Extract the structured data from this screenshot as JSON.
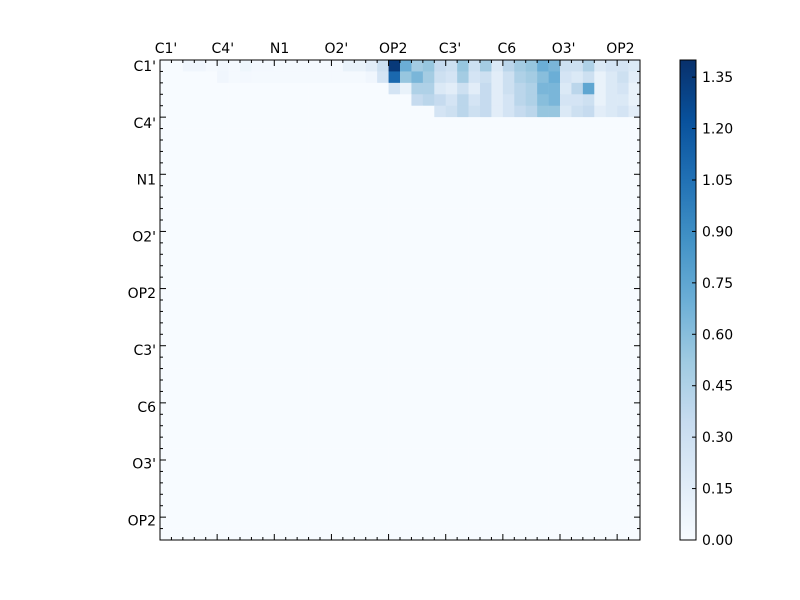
{
  "chart_data": {
    "type": "heatmap",
    "x_tick_labels": [
      "C1'",
      "C4'",
      "N1",
      "O2'",
      "OP2",
      "C3'",
      "C6",
      "O3'",
      "OP2"
    ],
    "y_tick_labels": [
      "C1'",
      "C4'",
      "N1",
      "O2'",
      "OP2",
      "C3'",
      "C6",
      "O3'",
      "OP2"
    ],
    "colorbar": {
      "min": 0.0,
      "max": 1.4,
      "ticks": [
        "0.00",
        "0.15",
        "0.30",
        "0.45",
        "0.60",
        "0.75",
        "0.90",
        "1.05",
        "1.20",
        "1.35"
      ],
      "colormap": "Blues"
    },
    "matrix_size": 42,
    "grid": false,
    "colors": {
      "low": "#f7fbff",
      "mid": "#6baed6",
      "high": "#08306b"
    },
    "cell_values": [
      [
        0,
        0,
        0.05,
        0.05,
        0.02,
        0.04,
        0.02,
        0.06,
        0.03,
        0.03,
        0.02,
        0.02,
        0.02,
        0.02,
        0.02,
        0.02,
        0.1,
        0.1,
        0.15,
        0.3,
        1.35,
        0.7,
        0.5,
        0.55,
        0.35,
        0.3,
        0.55,
        0.3,
        0.5,
        0.2,
        0.4,
        0.5,
        0.55,
        0.7,
        0.65,
        0.3,
        0.3,
        0.45,
        0.2,
        0.25,
        0.25,
        0.2
      ],
      [
        0,
        0,
        0,
        0,
        0,
        0.05,
        0.02,
        0.03,
        0.02,
        0.02,
        0.02,
        0.02,
        0.02,
        0.02,
        0.02,
        0.02,
        0.02,
        0.02,
        0.05,
        0.25,
        1.1,
        0.55,
        0.65,
        0.5,
        0.3,
        0.25,
        0.5,
        0.25,
        0.3,
        0.15,
        0.3,
        0.45,
        0.5,
        0.6,
        0.7,
        0.25,
        0.2,
        0.3,
        0.1,
        0.2,
        0.3,
        0.15
      ],
      [
        0,
        0,
        0,
        0,
        0,
        0,
        0,
        0,
        0,
        0,
        0,
        0,
        0,
        0,
        0,
        0,
        0,
        0,
        0,
        0,
        0.25,
        0.1,
        0.45,
        0.45,
        0.2,
        0.15,
        0.3,
        0.15,
        0.35,
        0.15,
        0.3,
        0.4,
        0.45,
        0.65,
        0.65,
        0.2,
        0.4,
        0.75,
        0.1,
        0.2,
        0.25,
        0.1
      ],
      [
        0,
        0,
        0,
        0,
        0,
        0,
        0,
        0,
        0,
        0,
        0,
        0,
        0,
        0,
        0,
        0,
        0,
        0,
        0,
        0,
        0,
        0,
        0.35,
        0.4,
        0.35,
        0.25,
        0.4,
        0.25,
        0.35,
        0.15,
        0.25,
        0.4,
        0.45,
        0.6,
        0.65,
        0.25,
        0.25,
        0.3,
        0.1,
        0.2,
        0.2,
        0.1
      ],
      [
        0,
        0,
        0,
        0,
        0,
        0,
        0,
        0,
        0,
        0,
        0,
        0,
        0,
        0,
        0,
        0,
        0,
        0,
        0,
        0,
        0,
        0,
        0,
        0,
        0.25,
        0.3,
        0.4,
        0.3,
        0.35,
        0.15,
        0.25,
        0.35,
        0.4,
        0.55,
        0.55,
        0.2,
        0.3,
        0.35,
        0.15,
        0.2,
        0.25,
        0.15
      ],
      [
        0,
        0,
        0,
        0,
        0,
        0,
        0,
        0,
        0,
        0,
        0,
        0,
        0,
        0,
        0,
        0,
        0,
        0,
        0,
        0,
        0,
        0,
        0,
        0,
        0,
        0,
        0,
        0,
        0,
        0,
        0,
        0,
        0,
        0,
        0,
        0,
        0,
        0,
        0,
        0,
        0,
        0
      ],
      [
        0,
        0,
        0,
        0,
        0,
        0,
        0,
        0,
        0,
        0,
        0,
        0,
        0,
        0,
        0,
        0,
        0,
        0,
        0,
        0,
        0,
        0,
        0,
        0,
        0,
        0,
        0,
        0,
        0,
        0,
        0,
        0,
        0,
        0,
        0,
        0,
        0,
        0,
        0,
        0,
        0,
        0
      ]
    ]
  }
}
